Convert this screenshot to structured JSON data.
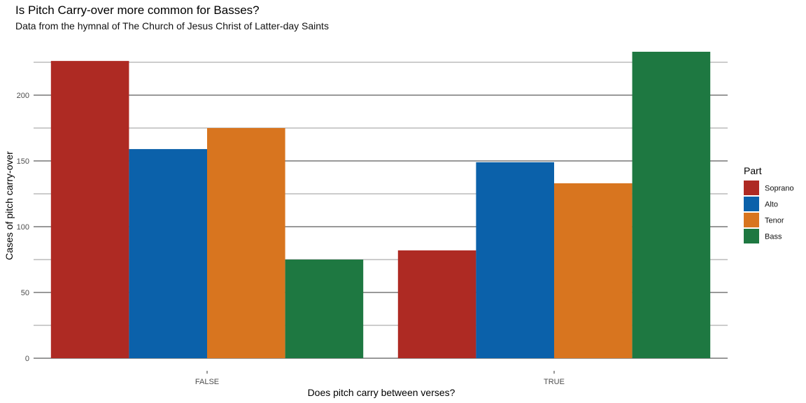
{
  "chart_data": {
    "type": "bar",
    "title": "Is Pitch Carry-over more common for Basses?",
    "subtitle": "Data from the hymnal of The Church of Jesus Christ of Latter-day Saints",
    "xlabel": "Does pitch carry between verses?",
    "ylabel": "Cases of pitch carry-over",
    "categories": [
      "FALSE",
      "TRUE"
    ],
    "ylim": [
      0,
      236
    ],
    "yticks": [
      0,
      50,
      100,
      150,
      200
    ],
    "grid": true,
    "legend": {
      "title": "Part",
      "placement": "right"
    },
    "series": [
      {
        "name": "Soprano",
        "color": "#AE2A23",
        "values": [
          226,
          82
        ]
      },
      {
        "name": "Alto",
        "color": "#0B61AA",
        "values": [
          159,
          149
        ]
      },
      {
        "name": "Tenor",
        "color": "#D8751F",
        "values": [
          175,
          133
        ]
      },
      {
        "name": "Bass",
        "color": "#1E7841",
        "values": [
          75,
          233
        ]
      }
    ]
  }
}
